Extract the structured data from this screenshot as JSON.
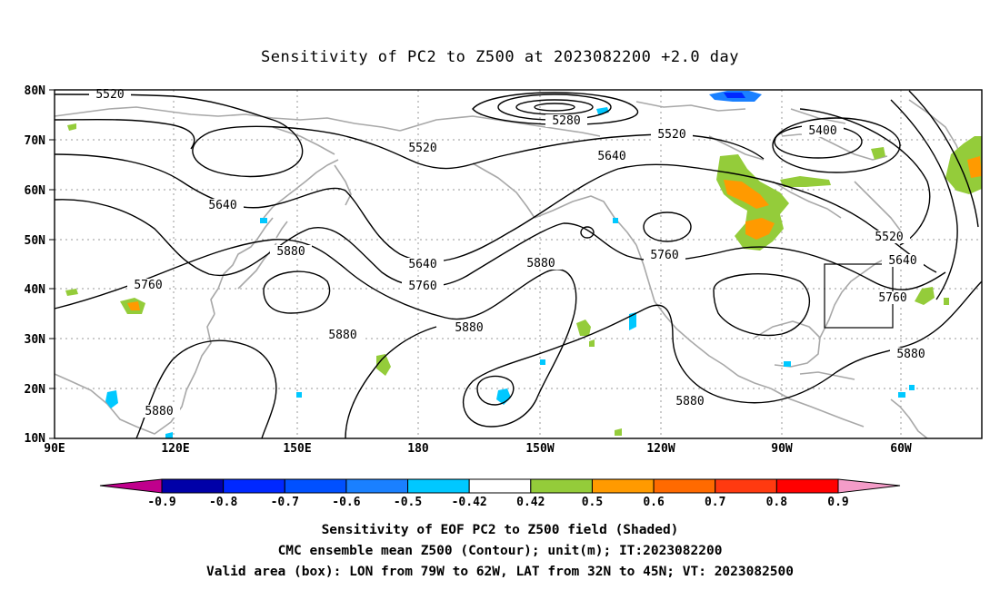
{
  "title": "Sensitivity of PC2 to Z500 at 2023082200 +2.0 day",
  "map": {
    "lat_labels": [
      "80N",
      "70N",
      "60N",
      "50N",
      "40N",
      "30N",
      "20N",
      "10N"
    ],
    "lon_labels": [
      "90E",
      "120E",
      "150E",
      "180",
      "150W",
      "120W",
      "90W",
      "60W"
    ],
    "contour_labels": [
      "5520",
      "5280",
      "5520",
      "5520",
      "5400",
      "5640",
      "5640",
      "5760",
      "5880",
      "5640",
      "5760",
      "5880",
      "5760",
      "5880",
      "5520",
      "5640",
      "5760",
      "5880",
      "5880",
      "5880",
      "5880"
    ]
  },
  "colorbar": {
    "labels": [
      "-0.9",
      "-0.8",
      "-0.7",
      "-0.6",
      "-0.5",
      "-0.42",
      "0.42",
      "0.5",
      "0.6",
      "0.7",
      "0.8",
      "0.9"
    ],
    "colors": [
      "#0000a8",
      "#0028ff",
      "#0050ff",
      "#1a80ff",
      "#00c8ff",
      "#ffffff",
      "#94cc3a",
      "#ff9a00",
      "#ff6a00",
      "#ff3a10",
      "#ff0000"
    ],
    "low_color": "#c0008c",
    "high_color": "#f49cc8"
  },
  "captions": [
    "Sensitivity of EOF PC2 to Z500 field (Shaded)",
    "CMC ensemble mean Z500 (Contour); unit(m); IT:2023082200",
    "Valid area (box): LON from 79W to 62W, LAT from 32N to 45N; VT: 2023082500"
  ]
}
